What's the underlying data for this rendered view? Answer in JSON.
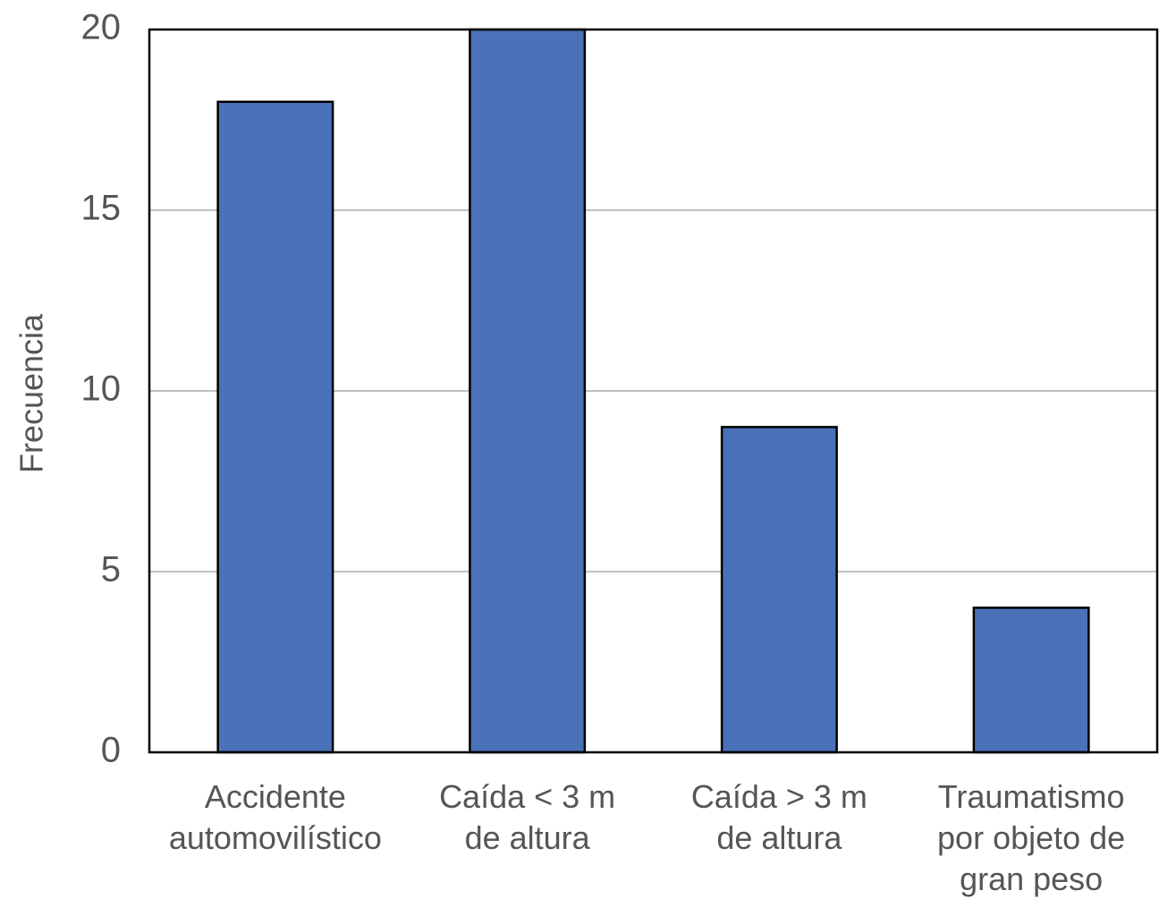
{
  "chart_data": {
    "type": "bar",
    "y_label": "Frecuencia",
    "categories": [
      "Accidente\nautomovilístico",
      "Caída < 3 m\nde altura",
      "Caída > 3 m\nde altura",
      "Traumatismo\npor objeto de\ngran peso"
    ],
    "values": [
      18,
      20,
      9,
      4
    ],
    "color": "#4a72b8",
    "ylim": [
      0,
      20
    ],
    "yticks": [
      0,
      5,
      10,
      15,
      20
    ],
    "grid": true
  }
}
